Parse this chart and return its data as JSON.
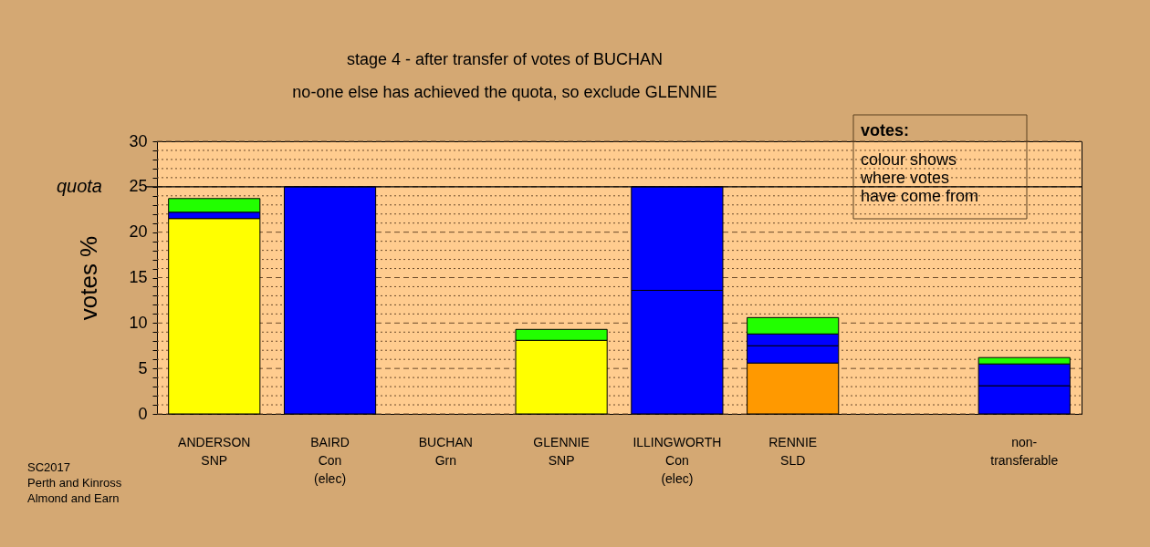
{
  "chart_data": {
    "type": "bar",
    "stacked": true,
    "title": "stage 4 - after transfer of votes of BUCHAN",
    "subtitle": "no-one else has achieved the quota, so exclude GLENNIE",
    "ylabel": "votes %",
    "categories": [
      "ANDERSON\nSNP",
      "BAIRD\nCon\n(elec)",
      "BUCHAN\nGrn",
      "GLENNIE\nSNP",
      "ILLINGWORTH\nCon\n(elec)",
      "RENNIE\nSLD",
      null,
      "non-\ntransferable"
    ],
    "series": [
      {
        "color": "#ff9900",
        "values": [
          null,
          null,
          null,
          null,
          null,
          5.6,
          null,
          null
        ]
      },
      {
        "color": "#ffff00",
        "values": [
          21.5,
          null,
          null,
          8.1,
          null,
          null,
          null,
          null
        ]
      },
      {
        "color": "#0000ff",
        "values": [
          0.7,
          25,
          null,
          null,
          13.6,
          1.9,
          null,
          3.1
        ]
      },
      {
        "color": "#0000ff",
        "values": [
          null,
          null,
          null,
          null,
          11.4,
          1.3,
          null,
          2.4
        ]
      },
      {
        "color": "#22ff00",
        "values": [
          1.5,
          null,
          null,
          1.2,
          null,
          1.8,
          null,
          0.7
        ]
      }
    ],
    "ylim": [
      0,
      30
    ],
    "yticks": [
      0,
      {
        "value": 1,
        "label": null
      },
      {
        "value": 2,
        "label": null
      },
      {
        "value": 3,
        "label": null
      },
      {
        "value": 4,
        "label": null
      },
      5,
      {
        "value": 6,
        "label": null
      },
      {
        "value": 7,
        "label": null
      },
      {
        "value": 8,
        "label": null
      },
      {
        "value": 9,
        "label": null
      },
      10,
      {
        "value": 11,
        "label": null
      },
      {
        "value": 12,
        "label": null
      },
      {
        "value": 13,
        "label": null
      },
      {
        "value": 14,
        "label": null
      },
      15,
      {
        "value": 16,
        "label": null
      },
      {
        "value": 17,
        "label": null
      },
      {
        "value": 18,
        "label": null
      },
      {
        "value": 19,
        "label": null
      },
      20,
      {
        "value": 21,
        "label": null
      },
      {
        "value": 22,
        "label": null
      },
      {
        "value": 23,
        "label": null
      },
      {
        "value": 24,
        "label": null
      },
      25,
      {
        "value": 26,
        "label": null
      },
      {
        "value": 27,
        "label": null
      },
      {
        "value": 28,
        "label": null
      },
      {
        "value": 29,
        "label": null
      },
      30
    ],
    "grid": "y",
    "ref_lines": [
      {
        "axis": "y",
        "value": 25,
        "label": "quota",
        "color": "#000000",
        "line_style": "solid"
      }
    ],
    "annotations": [
      "votes:",
      "colour shows\nwhere votes\nhave come from",
      "SC2017\nPerth and Kinross\nAlmond and Earn"
    ]
  }
}
